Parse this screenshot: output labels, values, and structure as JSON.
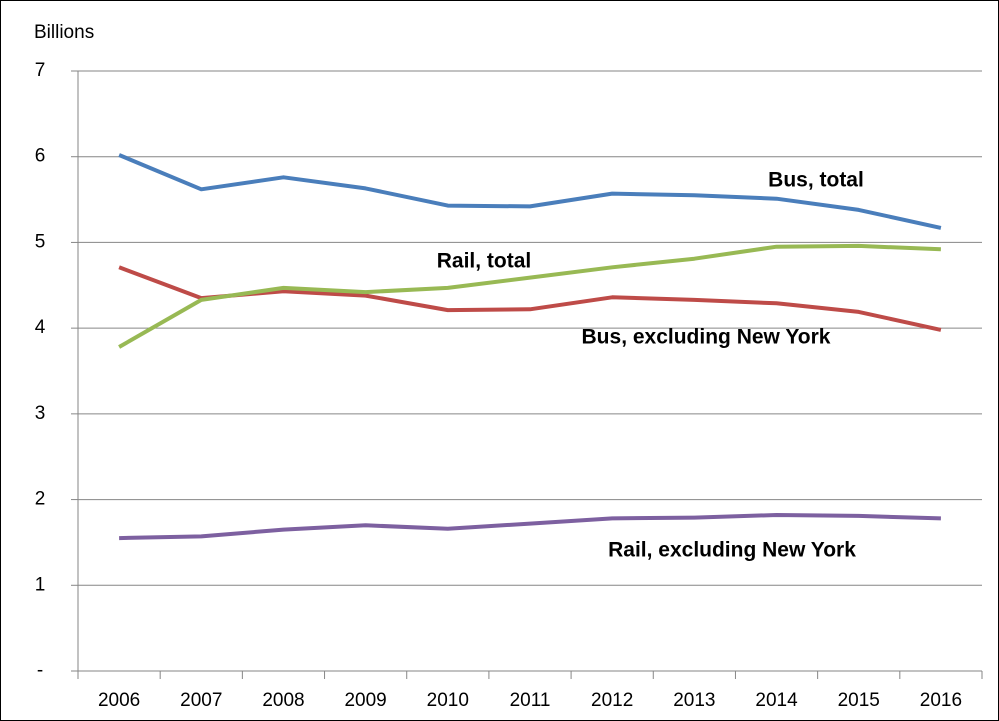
{
  "chart_data": {
    "type": "line",
    "y_label": "Billions",
    "categories": [
      "2006",
      "2007",
      "2008",
      "2009",
      "2010",
      "2011",
      "2012",
      "2013",
      "2014",
      "2015",
      "2016"
    ],
    "series": [
      {
        "name": "Bus, total",
        "color": "#4a7ebb",
        "values": [
          6.02,
          5.62,
          5.76,
          5.63,
          5.43,
          5.42,
          5.57,
          5.55,
          5.51,
          5.38,
          5.17
        ]
      },
      {
        "name": "Bus, excluding New York",
        "color": "#be4b48",
        "values": [
          4.71,
          4.35,
          4.43,
          4.38,
          4.21,
          4.22,
          4.36,
          4.33,
          4.29,
          4.19,
          3.98
        ]
      },
      {
        "name": "Rail, total",
        "color": "#98b954",
        "values": [
          3.78,
          4.33,
          4.47,
          4.42,
          4.47,
          4.59,
          4.71,
          4.81,
          4.95,
          4.96,
          4.92
        ]
      },
      {
        "name": "Rail, excluding New York",
        "color": "#7d60a0",
        "values": [
          1.55,
          1.57,
          1.65,
          1.7,
          1.66,
          1.72,
          1.78,
          1.79,
          1.82,
          1.81,
          1.78
        ]
      }
    ],
    "ylim": [
      0,
      7
    ],
    "yticks": [
      {
        "value": 0,
        "label": "-"
      },
      1,
      2,
      3,
      4,
      5,
      6,
      7
    ],
    "grid": true
  }
}
